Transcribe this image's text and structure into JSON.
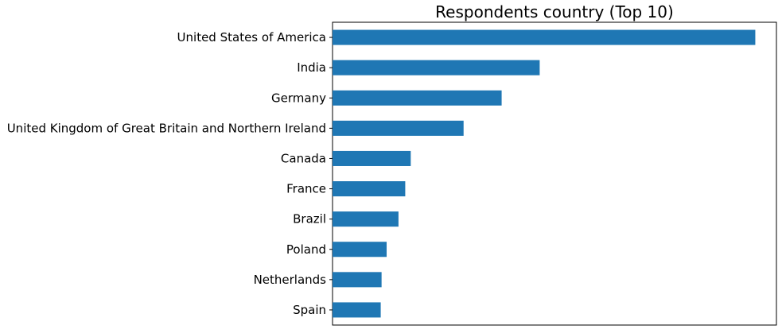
{
  "chart_data": {
    "type": "bar",
    "orientation": "horizontal",
    "title": "Respondents country (Top 10)",
    "xlabel": "",
    "ylabel": "",
    "categories": [
      "United States of America",
      "India",
      "Germany",
      "United Kingdom of Great Britain and Northern Ireland",
      "Canada",
      "France",
      "Brazil",
      "Poland",
      "Netherlands",
      "Spain"
    ],
    "values": [
      100,
      49,
      40,
      31,
      18.5,
      17.2,
      15.6,
      12.8,
      11.6,
      11.4
    ],
    "xlim": [
      0,
      105
    ],
    "x_ticks_visible": false,
    "grid": false,
    "bar_color": "#1f77b4"
  }
}
